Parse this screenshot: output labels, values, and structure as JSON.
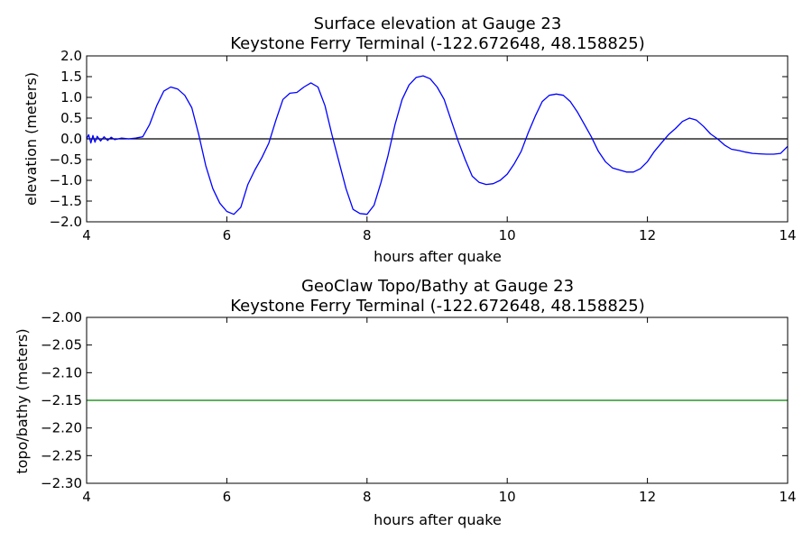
{
  "chart_data": [
    {
      "type": "line",
      "title": "Surface elevation at Gauge 23",
      "subtitle": "Keystone Ferry Terminal  (-122.672648, 48.158825)",
      "xlabel": "hours after quake",
      "ylabel": "elevation (meters)",
      "xlim": [
        4,
        14
      ],
      "ylim": [
        -2.0,
        2.0
      ],
      "xticks": [
        "4",
        "6",
        "8",
        "10",
        "12",
        "14"
      ],
      "yticks": [
        "2.0",
        "1.5",
        "1.0",
        "0.5",
        "0.0",
        "−0.5",
        "−1.0",
        "−1.5",
        "−2.0"
      ],
      "grid": false,
      "reference_line": {
        "y": 0.0,
        "color": "#000000"
      },
      "series": [
        {
          "color": "#0000ff",
          "x": [
            4.0,
            4.03,
            4.06,
            4.09,
            4.12,
            4.15,
            4.2,
            4.25,
            4.3,
            4.35,
            4.4,
            4.5,
            4.6,
            4.7,
            4.8,
            4.9,
            5.0,
            5.1,
            5.2,
            5.3,
            5.4,
            5.5,
            5.6,
            5.7,
            5.8,
            5.9,
            6.0,
            6.1,
            6.2,
            6.3,
            6.4,
            6.5,
            6.6,
            6.7,
            6.8,
            6.9,
            7.0,
            7.1,
            7.2,
            7.3,
            7.4,
            7.5,
            7.6,
            7.7,
            7.8,
            7.9,
            8.0,
            8.1,
            8.2,
            8.3,
            8.4,
            8.5,
            8.6,
            8.7,
            8.8,
            8.9,
            9.0,
            9.1,
            9.2,
            9.3,
            9.4,
            9.5,
            9.6,
            9.7,
            9.8,
            9.9,
            10.0,
            10.1,
            10.2,
            10.3,
            10.4,
            10.5,
            10.6,
            10.7,
            10.8,
            10.9,
            11.0,
            11.1,
            11.2,
            11.3,
            11.4,
            11.5,
            11.6,
            11.7,
            11.8,
            11.9,
            12.0,
            12.1,
            12.2,
            12.3,
            12.4,
            12.5,
            12.6,
            12.7,
            12.8,
            12.9,
            13.0,
            13.1,
            13.2,
            13.3,
            13.4,
            13.5,
            13.6,
            13.7,
            13.8,
            13.9,
            14.0
          ],
          "y": [
            0.0,
            0.1,
            -0.1,
            0.08,
            -0.08,
            0.06,
            -0.05,
            0.05,
            -0.04,
            0.04,
            -0.02,
            0.02,
            0.0,
            0.02,
            0.05,
            0.35,
            0.8,
            1.15,
            1.25,
            1.2,
            1.05,
            0.75,
            0.1,
            -0.65,
            -1.2,
            -1.55,
            -1.75,
            -1.82,
            -1.65,
            -1.1,
            -0.75,
            -0.45,
            -0.1,
            0.45,
            0.95,
            1.1,
            1.12,
            1.25,
            1.35,
            1.25,
            0.8,
            0.1,
            -0.55,
            -1.2,
            -1.7,
            -1.8,
            -1.82,
            -1.6,
            -1.05,
            -0.4,
            0.35,
            0.95,
            1.3,
            1.48,
            1.52,
            1.45,
            1.25,
            0.95,
            0.45,
            -0.05,
            -0.5,
            -0.9,
            -1.05,
            -1.1,
            -1.08,
            -1.0,
            -0.85,
            -0.6,
            -0.3,
            0.15,
            0.55,
            0.9,
            1.05,
            1.08,
            1.05,
            0.9,
            0.65,
            0.35,
            0.05,
            -0.3,
            -0.55,
            -0.7,
            -0.75,
            -0.8,
            -0.8,
            -0.72,
            -0.55,
            -0.3,
            -0.1,
            0.1,
            0.25,
            0.42,
            0.5,
            0.45,
            0.3,
            0.12,
            0.0,
            -0.15,
            -0.25,
            -0.28,
            -0.32,
            -0.35,
            -0.36,
            -0.37,
            -0.37,
            -0.35,
            -0.18
          ]
        }
      ]
    },
    {
      "type": "line",
      "title": "GeoClaw Topo/Bathy at Gauge 23",
      "subtitle": "Keystone Ferry Terminal  (-122.672648, 48.158825)",
      "xlabel": "hours after quake",
      "ylabel": "topo/bathy (meters)",
      "xlim": [
        4,
        14
      ],
      "ylim": [
        -2.3,
        -2.0
      ],
      "xticks": [
        "4",
        "6",
        "8",
        "10",
        "12",
        "14"
      ],
      "yticks": [
        "−2.00",
        "−2.05",
        "−2.10",
        "−2.15",
        "−2.20",
        "−2.25",
        "−2.30"
      ],
      "grid": false,
      "series": [
        {
          "color": "#008000",
          "x": [
            4,
            14
          ],
          "y": [
            -2.15,
            -2.15
          ]
        }
      ]
    }
  ]
}
